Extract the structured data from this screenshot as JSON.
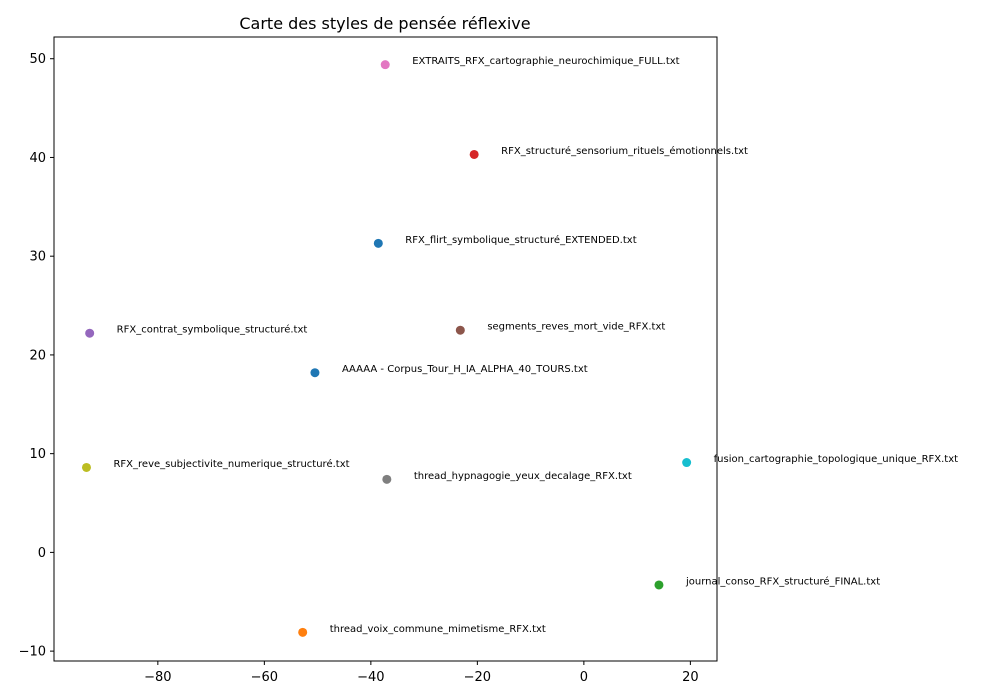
{
  "chart_data": {
    "type": "scatter",
    "title": "Carte des styles de pensée réflexive",
    "xlabel": "",
    "ylabel": "",
    "xlim": [
      -99.5,
      25
    ],
    "ylim": [
      -11,
      52.2
    ],
    "x_ticks": [
      -80,
      -60,
      -40,
      -20,
      0,
      20
    ],
    "x_tick_labels": [
      "−80",
      "−60",
      "−40",
      "−20",
      "0",
      "20"
    ],
    "y_ticks": [
      -10,
      0,
      10,
      20,
      30,
      40,
      50
    ],
    "y_tick_labels": [
      "−10",
      "0",
      "10",
      "20",
      "30",
      "40",
      "50"
    ],
    "grid": false,
    "points": [
      {
        "label": "AAAAA - Corpus_Tour_H_IA_ALPHA_40_TOURS.txt",
        "x": -50.5,
        "y": 18.2,
        "color": "#1f77b4"
      },
      {
        "label": "thread_voix_commune_mimetisme_RFX.txt",
        "x": -52.8,
        "y": -8.1,
        "color": "#ff7f0e"
      },
      {
        "label": "journal_conso_RFX_structuré_FINAL.txt",
        "x": 14.1,
        "y": -3.3,
        "color": "#2ca02c"
      },
      {
        "label": "RFX_structuré_sensorium_rituels_émotionnels.txt",
        "x": -20.6,
        "y": 40.3,
        "color": "#d62728"
      },
      {
        "label": "RFX_contrat_symbolique_structuré.txt",
        "x": -92.8,
        "y": 22.2,
        "color": "#9467bd"
      },
      {
        "label": "segments_reves_mort_vide_RFX.txt",
        "x": -23.2,
        "y": 22.5,
        "color": "#8c564b"
      },
      {
        "label": "EXTRAITS_RFX_cartographie_neurochimique_FULL.txt",
        "x": -37.3,
        "y": 49.4,
        "color": "#e377c2"
      },
      {
        "label": "thread_hypnagogie_yeux_decalage_RFX.txt",
        "x": -37.0,
        "y": 7.4,
        "color": "#7f7f7f"
      },
      {
        "label": "RFX_reve_subjectivite_numerique_structuré.txt",
        "x": -93.4,
        "y": 8.6,
        "color": "#bcbd22"
      },
      {
        "label": "fusion_cartographie_topologique_unique_RFX.txt",
        "x": 19.3,
        "y": 9.1,
        "color": "#17becf"
      },
      {
        "label": "RFX_flirt_symbolique_structuré_EXTENDED.txt",
        "x": -38.6,
        "y": 31.3,
        "color": "#1f77b4"
      }
    ]
  }
}
